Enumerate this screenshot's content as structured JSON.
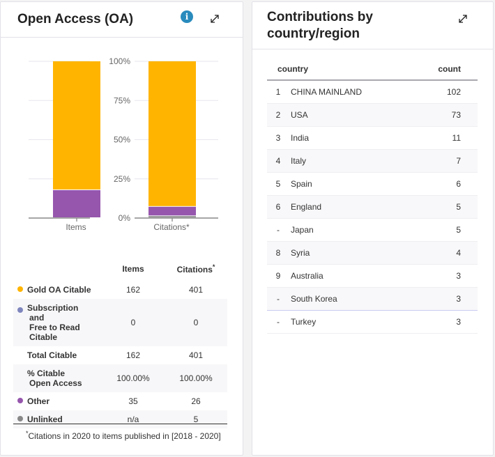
{
  "oa_card": {
    "title": "Open Access (OA)",
    "info_icon": "info-icon",
    "expand_icon": "expand-icon",
    "chart_data": {
      "type": "bar",
      "stacked": true,
      "categories": [
        "Items",
        "Citations*"
      ],
      "series": [
        {
          "name": "Unlinked",
          "color": "#888888",
          "values": [
            0,
            1.2
          ]
        },
        {
          "name": "Other",
          "color": "#9656ad",
          "values": [
            17.8,
            6.0
          ]
        },
        {
          "name": "Subscription and Free to Read Citable",
          "color": "#7f86bd",
          "values": [
            0,
            0
          ]
        },
        {
          "name": "Gold OA Citable",
          "color": "#ffb400",
          "values": [
            82.2,
            92.8
          ]
        }
      ],
      "yticks": [
        "0%",
        "25%",
        "50%",
        "75%",
        "100%"
      ],
      "ylim": [
        0,
        100
      ],
      "grid": true
    },
    "table": {
      "headers": {
        "items": "Items",
        "citations": "Citations",
        "citations_sup": "*"
      },
      "rows": [
        {
          "label": "Gold OA Citable",
          "items": "162",
          "citations": "401",
          "dot": "#ffb400"
        },
        {
          "label_lines": [
            "Subscription",
            " and",
            " Free to Read",
            " Citable"
          ],
          "items": "0",
          "citations": "0",
          "dot": "#7f86bd"
        },
        {
          "label": "Total Citable",
          "items": "162",
          "citations": "401"
        },
        {
          "label_lines": [
            "% Citable",
            " Open Access"
          ],
          "items": "100.00%",
          "citations": "100.00%"
        },
        {
          "label": "Other",
          "items": "35",
          "citations": "26",
          "dot": "#9656ad"
        },
        {
          "label": "Unlinked",
          "items": "n/a",
          "citations": "5",
          "dot": "#888888"
        }
      ]
    },
    "footnote": {
      "sup": "*",
      "text": "Citations in 2020 to items published in [2018 - 2020]"
    }
  },
  "cc_card": {
    "title": "Contributions by country/region",
    "expand_icon": "expand-icon",
    "headers": {
      "country": "country",
      "count": "count"
    },
    "rows": [
      {
        "rank": "1",
        "country": "CHINA MAINLAND",
        "count": "102"
      },
      {
        "rank": "2",
        "country": "USA",
        "count": "73"
      },
      {
        "rank": "3",
        "country": "India",
        "count": "11"
      },
      {
        "rank": "4",
        "country": "Italy",
        "count": "7"
      },
      {
        "rank": "5",
        "country": "Spain",
        "count": "6"
      },
      {
        "rank": "6",
        "country": "England",
        "count": "5"
      },
      {
        "rank": "-",
        "country": "Japan",
        "count": "5"
      },
      {
        "rank": "8",
        "country": "Syria",
        "count": "4"
      },
      {
        "rank": "9",
        "country": "Australia",
        "count": "3"
      },
      {
        "rank": "-",
        "country": "South Korea",
        "count": "3"
      },
      {
        "rank": "-",
        "country": "Turkey",
        "count": "3"
      }
    ]
  }
}
